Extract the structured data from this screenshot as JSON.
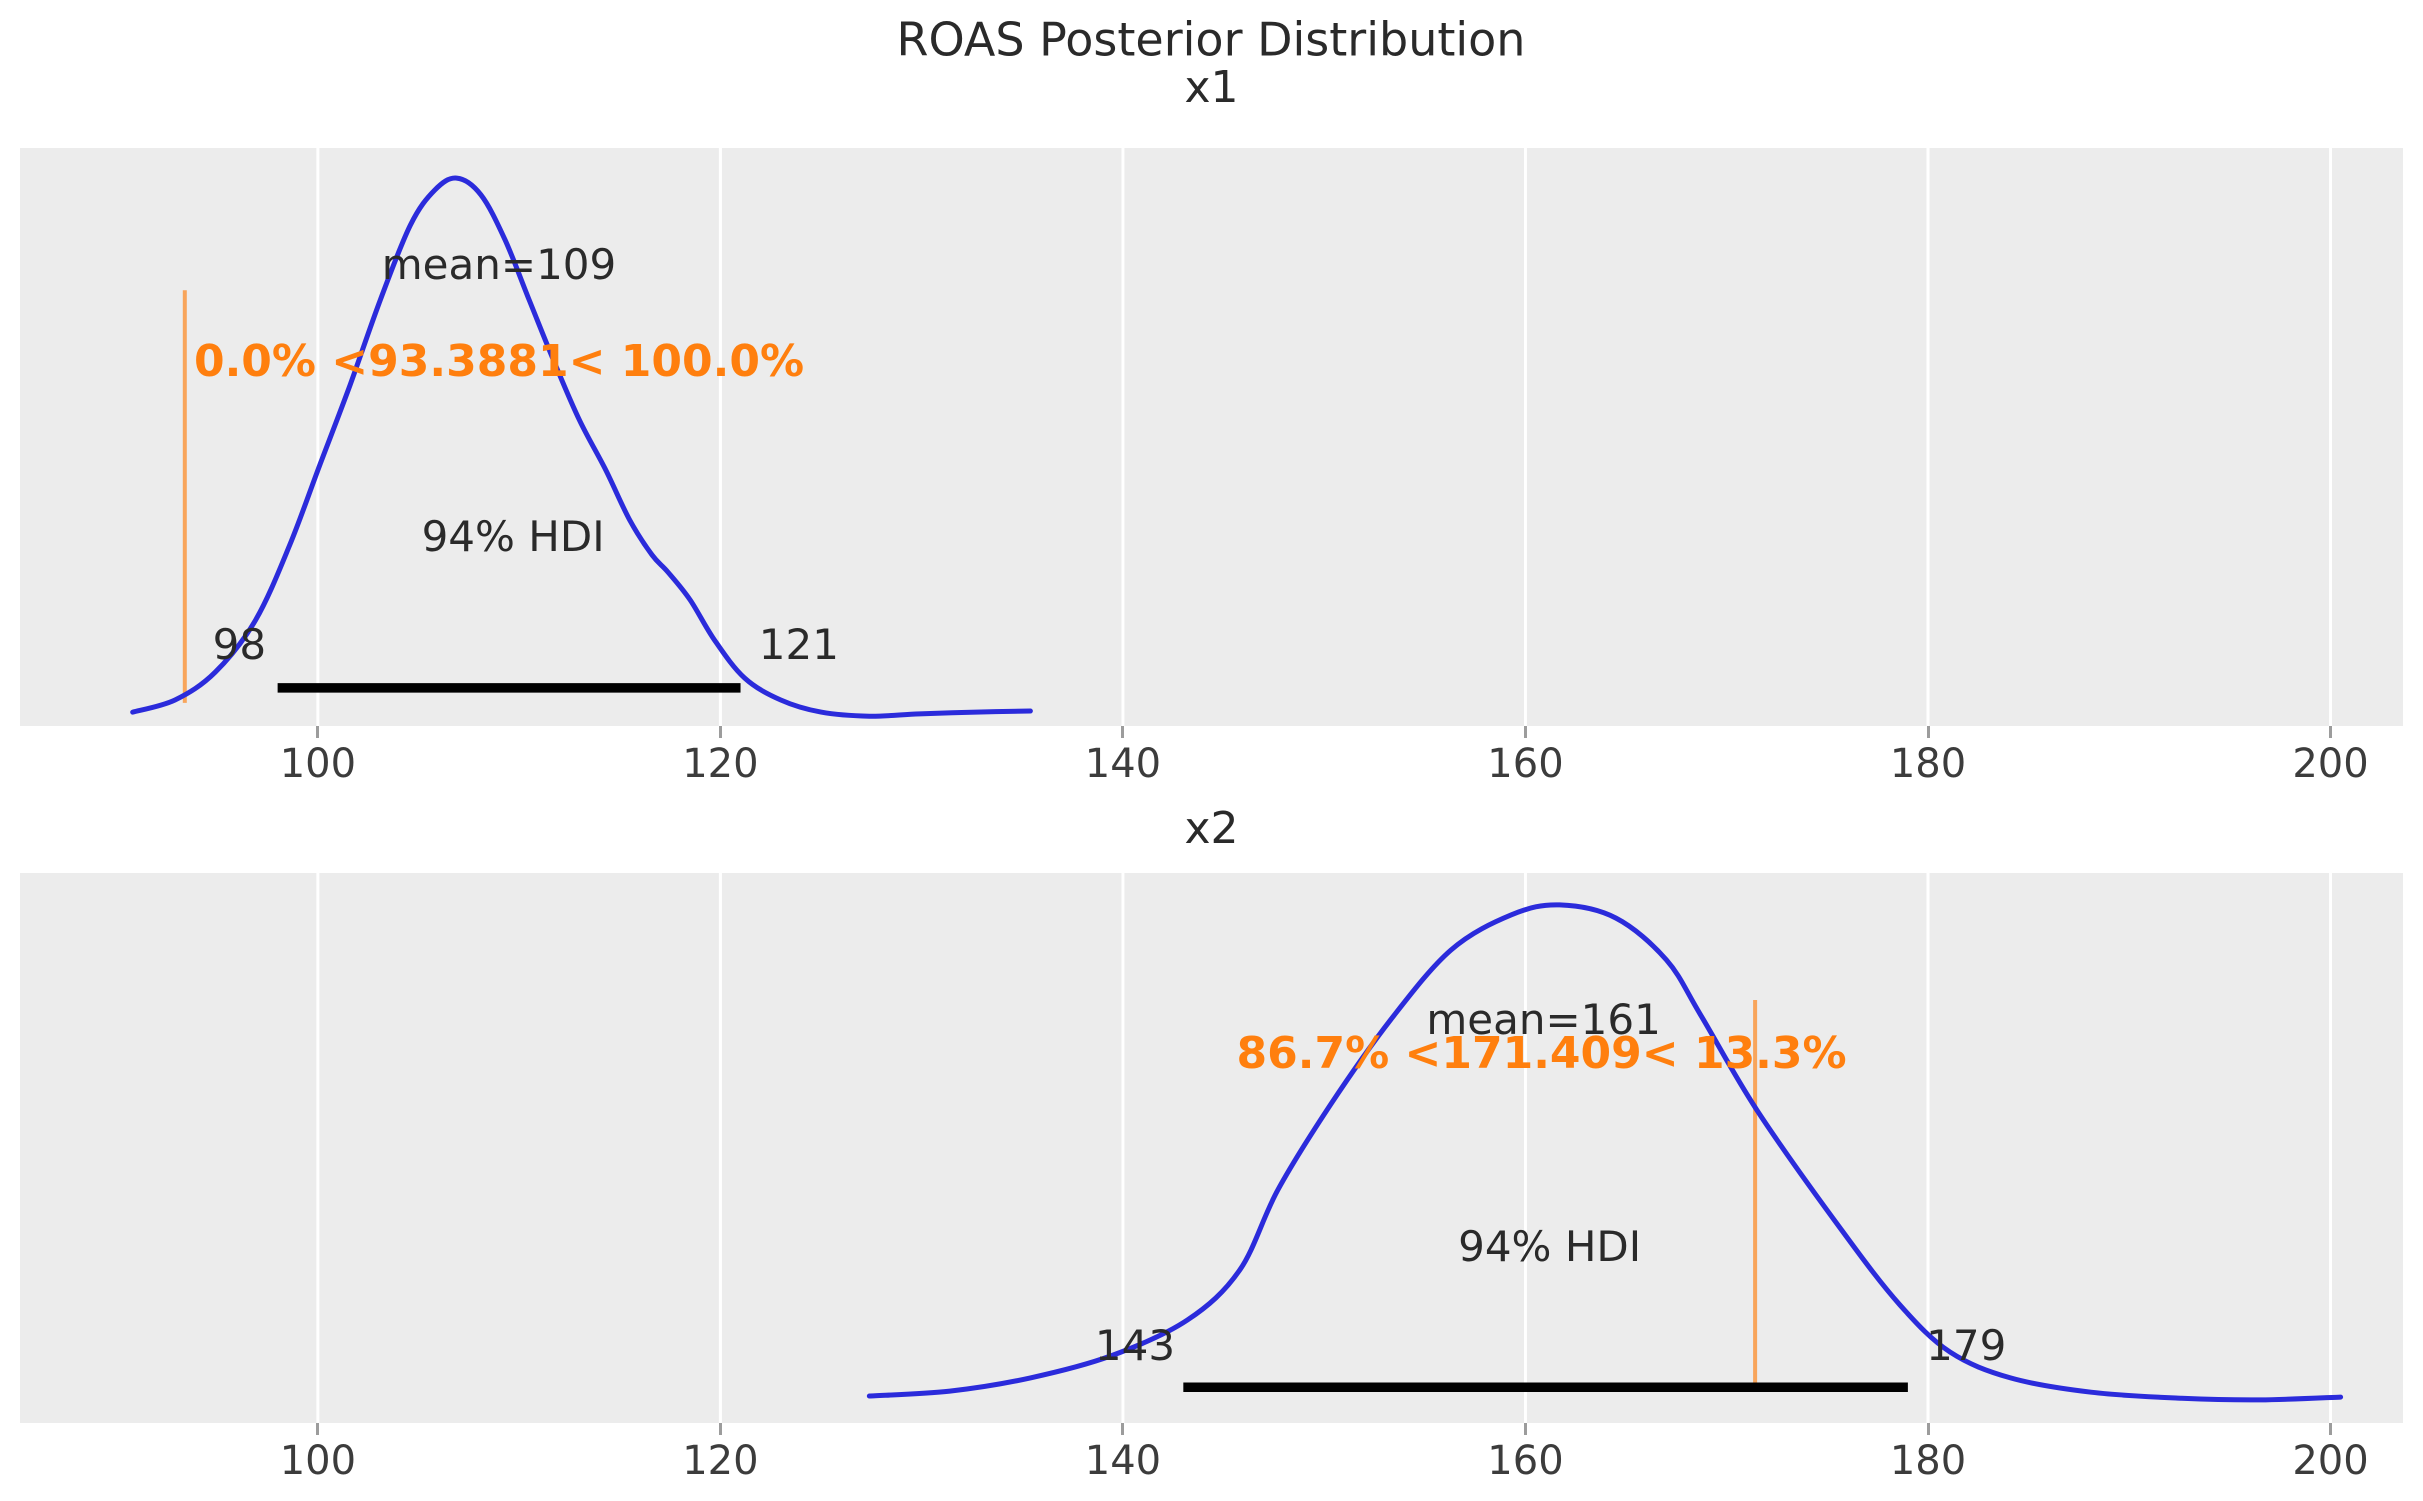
{
  "figure": {
    "title": "ROAS Posterior Distribution"
  },
  "colors": {
    "curve": "#2b2bdb",
    "ref": "#ff7f0e",
    "ref_line_opacity": 0.65,
    "hdi_bar": "#000000",
    "axes_bg": "#ececec",
    "grid": "#ffffff",
    "text": "#2a2a2a",
    "tick_mark": "#9c9c9c",
    "tick_label": "#3c3c3c"
  },
  "x_axis": {
    "ticks": [
      100,
      120,
      140,
      160,
      180,
      200
    ],
    "tick_labels": [
      "100",
      "120",
      "140",
      "160",
      "180",
      "200"
    ],
    "xlim": [
      85.2,
      203.6
    ]
  },
  "chart_data": [
    {
      "type": "kde",
      "title": "x1",
      "mean": 109,
      "mean_label": "mean=109",
      "hdi_probability": "94%",
      "hdi_label": "94% HDI",
      "hdi": [
        98,
        121
      ],
      "hdi_lower_label": "98",
      "hdi_upper_label": "121",
      "ref_val": 93.3881,
      "ref_text": "0.0% <93.3881< 100.0%",
      "mean_pos": [
        109.0,
        0.798
      ],
      "ref_text_pos": [
        109.0,
        0.63
      ],
      "hdi_text_pos": [
        109.7,
        0.327
      ],
      "hdi_label_x": [
        96.1,
        123.9
      ],
      "hdi_label_h": 0.14,
      "hdi_bar_h": 0.066,
      "ref_line_span": [
        0.04,
        0.754
      ],
      "curve": [
        [
          90.8,
          0.024
        ],
        [
          92.9,
          0.045
        ],
        [
          94.9,
          0.093
        ],
        [
          96.9,
          0.183
        ],
        [
          98.6,
          0.313
        ],
        [
          100.1,
          0.452
        ],
        [
          101.6,
          0.59
        ],
        [
          103.1,
          0.737
        ],
        [
          104.6,
          0.867
        ],
        [
          105.8,
          0.927
        ],
        [
          106.9,
          0.948
        ],
        [
          108.1,
          0.919
        ],
        [
          109.3,
          0.841
        ],
        [
          110.5,
          0.737
        ],
        [
          111.8,
          0.625
        ],
        [
          113.0,
          0.529
        ],
        [
          114.3,
          0.443
        ],
        [
          115.5,
          0.356
        ],
        [
          116.6,
          0.296
        ],
        [
          117.4,
          0.266
        ],
        [
          118.5,
          0.218
        ],
        [
          119.7,
          0.149
        ],
        [
          121.2,
          0.083
        ],
        [
          123.0,
          0.045
        ],
        [
          125.0,
          0.024
        ],
        [
          127.4,
          0.017
        ],
        [
          129.9,
          0.021
        ],
        [
          132.7,
          0.024
        ],
        [
          135.4,
          0.026
        ]
      ]
    },
    {
      "type": "kde",
      "title": "x2",
      "mean": 161,
      "mean_label": "mean=161",
      "hdi_probability": "94%",
      "hdi_label": "94% HDI",
      "hdi": [
        143,
        179
      ],
      "hdi_lower_label": "143",
      "hdi_upper_label": "179",
      "ref_val": 171.409,
      "ref_text": "86.7% <171.409< 13.3%",
      "mean_pos": [
        160.9,
        0.733
      ],
      "ref_text_pos": [
        160.8,
        0.671
      ],
      "hdi_text_pos": [
        161.2,
        0.32
      ],
      "hdi_label_x": [
        140.6,
        181.9
      ],
      "hdi_label_h": 0.14,
      "hdi_bar_h": 0.065,
      "ref_line_span": [
        0.06,
        0.769
      ],
      "curve": [
        [
          127.4,
          0.049
        ],
        [
          131.4,
          0.058
        ],
        [
          135.4,
          0.082
        ],
        [
          139.4,
          0.122
        ],
        [
          143.2,
          0.187
        ],
        [
          145.8,
          0.278
        ],
        [
          147.7,
          0.424
        ],
        [
          150.3,
          0.578
        ],
        [
          153.3,
          0.733
        ],
        [
          156.3,
          0.86
        ],
        [
          159.3,
          0.924
        ],
        [
          161.7,
          0.942
        ],
        [
          164.5,
          0.918
        ],
        [
          167.0,
          0.842
        ],
        [
          168.7,
          0.742
        ],
        [
          171.5,
          0.569
        ],
        [
          175.7,
          0.351
        ],
        [
          178.6,
          0.215
        ],
        [
          181.1,
          0.129
        ],
        [
          184.1,
          0.082
        ],
        [
          188.1,
          0.056
        ],
        [
          192.6,
          0.045
        ],
        [
          196.5,
          0.042
        ],
        [
          200.5,
          0.047
        ]
      ]
    }
  ]
}
